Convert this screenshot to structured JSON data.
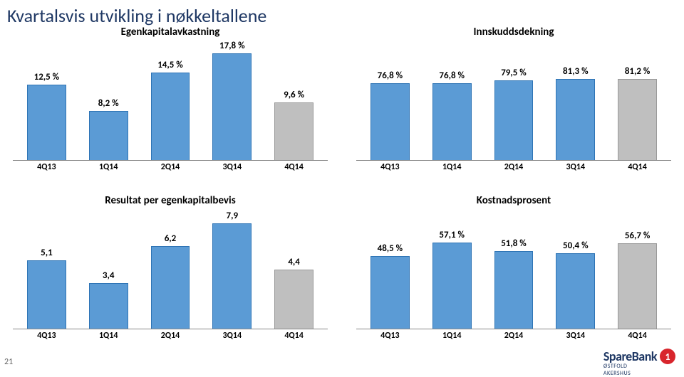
{
  "page": {
    "title": "Kvartalsvis utvikling i nøkkeltallene",
    "page_number": "21",
    "background_color": "#ffffff",
    "title_color": "#1f3864",
    "title_fontsize": 26
  },
  "brand": {
    "wordmark": "SpareBank",
    "subbrand": "ØSTFOLD AKERSHUS",
    "badge_text": "1",
    "badge_color": "#d8252c",
    "text_color": "#1f3864"
  },
  "style": {
    "bar_primary_color": "#5b9bd5",
    "bar_secondary_color": "#bfbfbf",
    "bar_border_color": "#2e74b5",
    "axis_color": "#888888",
    "label_fontsize": 13,
    "xaxis_fontsize": 12,
    "bar_width": 0.7
  },
  "charts": {
    "egenkapitalavkastning": {
      "type": "bar",
      "title": "Egenkapitalavkastning",
      "categories": [
        "4Q13",
        "1Q14",
        "2Q14",
        "3Q14",
        "4Q14"
      ],
      "labels": [
        "12,5 %",
        "8,2 %",
        "14,5 %",
        "17,8 %",
        "9,6 %"
      ],
      "values": [
        12.5,
        8.2,
        14.5,
        17.8,
        9.6
      ],
      "ylim": [
        0,
        20
      ],
      "highlight_index": 4
    },
    "innskuddsdekning": {
      "type": "bar",
      "title": "Innskuddsdekning",
      "categories": [
        "4Q13",
        "1Q14",
        "2Q14",
        "3Q14",
        "4Q14"
      ],
      "labels": [
        "76,8 %",
        "76,8 %",
        "79,5 %",
        "81,3 %",
        "81,2 %"
      ],
      "values": [
        76.8,
        76.8,
        79.5,
        81.3,
        81.2
      ],
      "ylim": [
        0,
        120
      ],
      "highlight_index": 4
    },
    "resultat": {
      "type": "bar",
      "title": "Resultat per egenkapitalbevis",
      "categories": [
        "4Q13",
        "1Q14",
        "2Q14",
        "3Q14",
        "4Q14"
      ],
      "labels": [
        "5,1",
        "3,4",
        "6,2",
        "7,9",
        "4,4"
      ],
      "values": [
        5.1,
        3.4,
        6.2,
        7.9,
        4.4
      ],
      "ylim": [
        0,
        9
      ],
      "highlight_index": 4
    },
    "kostnadsprosent": {
      "type": "bar",
      "title": "Kostnadsprosent",
      "categories": [
        "4Q13",
        "1Q14",
        "2Q14",
        "3Q14",
        "4Q14"
      ],
      "labels": [
        "48,5 %",
        "57,1 %",
        "51,8 %",
        "50,4 %",
        "56,7 %"
      ],
      "values": [
        48.5,
        57.1,
        51.8,
        50.4,
        56.7
      ],
      "ylim": [
        0,
        80
      ],
      "highlight_index": 4
    }
  }
}
